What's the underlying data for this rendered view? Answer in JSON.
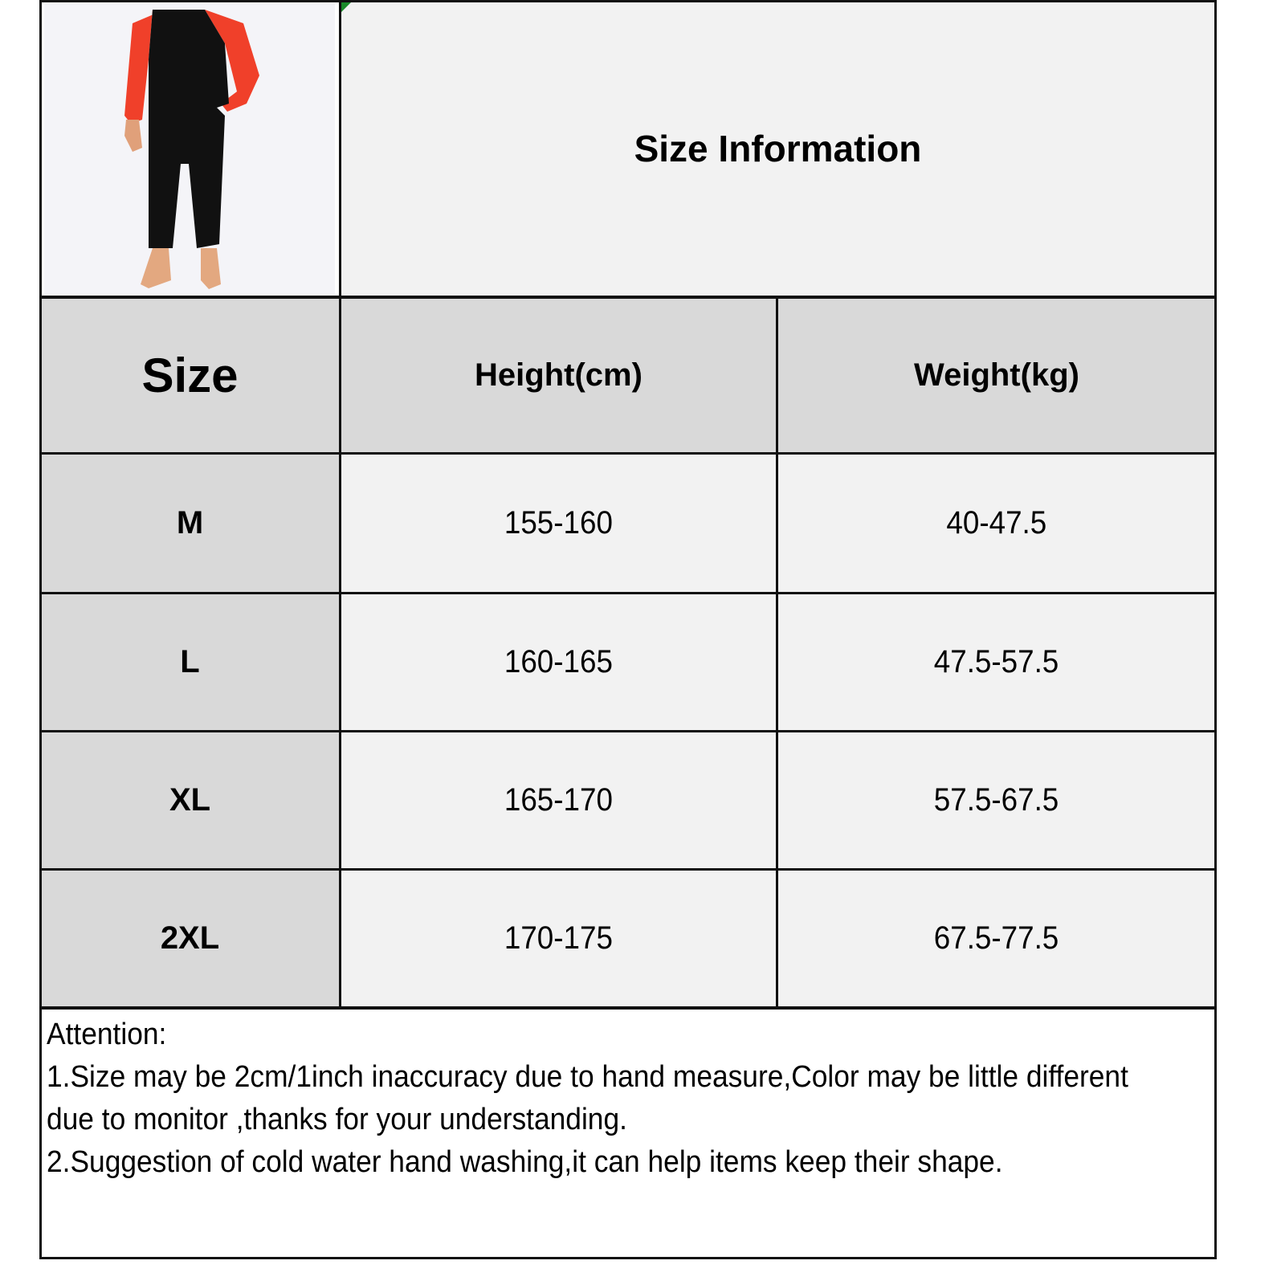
{
  "title": "Size Information",
  "product_image": {
    "description_icon": "sauna-suit-photo",
    "colors": {
      "sleeves": "#f0402a",
      "body": "#111111"
    }
  },
  "table": {
    "headers": [
      "Size",
      "Height(cm)",
      "Weight(kg)"
    ],
    "rows": [
      {
        "size": "M",
        "height": "155-160",
        "weight": "40-47.5"
      },
      {
        "size": "L",
        "height": "160-165",
        "weight": "47.5-57.5"
      },
      {
        "size": "XL",
        "height": "165-170",
        "weight": "57.5-67.5"
      },
      {
        "size": "2XL",
        "height": "170-175",
        "weight": "67.5-77.5"
      }
    ]
  },
  "attention": {
    "heading": "Attention:",
    "notes": [
      "1.Size may be 2cm/1inch inaccuracy due to hand measure,Color may be little different due to monitor ,thanks for your understanding.",
      "2.Suggestion of cold water hand washing,it can help items keep their shape."
    ]
  },
  "colors": {
    "header_bg": "#d9d9d9",
    "cell_bg": "#f2f2f2",
    "border": "#111111"
  }
}
